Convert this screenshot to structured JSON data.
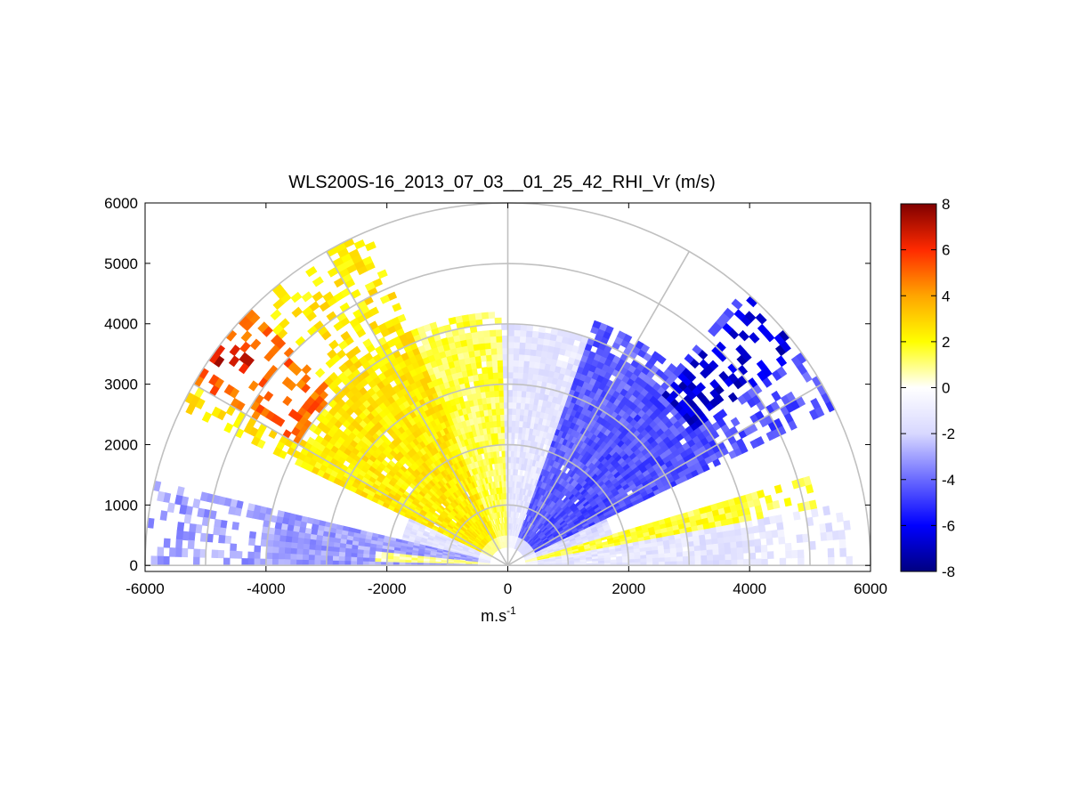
{
  "chart_data": {
    "type": "heatmap",
    "subtype": "polar-rhi-sector",
    "title": "WLS200S-16_2013_07_03__01_25_42_RHI_Vr (m/s)",
    "xlabel": "m.s",
    "xlabel_sup": "-1",
    "ylabel": "",
    "xlim": [
      -6000,
      6000
    ],
    "ylim": [
      -100,
      6000
    ],
    "x_ticks": [
      -6000,
      -4000,
      -2000,
      0,
      2000,
      4000,
      6000
    ],
    "y_ticks": [
      0,
      1000,
      2000,
      3000,
      4000,
      5000,
      6000
    ],
    "x_tick_labels": [
      "-6000",
      "-4000",
      "-2000",
      "0",
      "2000",
      "4000",
      "6000"
    ],
    "y_tick_labels": [
      "0",
      "1000",
      "2000",
      "3000",
      "4000",
      "5000",
      "6000"
    ],
    "range_rings": [
      1000,
      2000,
      3000,
      4000,
      5000,
      6000
    ],
    "radial_spokes_deg": [
      0,
      30,
      60,
      90,
      120,
      150,
      180
    ],
    "grid": true,
    "colorbar": {
      "min": -8,
      "max": 8,
      "ticks": [
        8,
        6,
        4,
        2,
        0,
        -2,
        -4,
        -6,
        -8
      ],
      "tick_labels": [
        "8",
        "6",
        "4",
        "2",
        "0",
        "-2",
        "-4",
        "-6",
        "-8"
      ],
      "placement": "right",
      "colors": [
        "#000080",
        "#0000ff",
        "#6a6aff",
        "#d8d8ff",
        "#ffffff",
        "#ffff00",
        "#ffa500",
        "#ff2a00",
        "#800000"
      ]
    },
    "velocity_regions": [
      {
        "elevation_deg": [
          0,
          10
        ],
        "range_m": [
          300,
          5800
        ],
        "vr": -1.3
      },
      {
        "elevation_deg": [
          10,
          16
        ],
        "range_m": [
          300,
          5200
        ],
        "vr": 1.6
      },
      {
        "elevation_deg": [
          16,
          26
        ],
        "range_m": [
          300,
          1800
        ],
        "vr": -1.6
      },
      {
        "elevation_deg": [
          26,
          50
        ],
        "range_m": [
          300,
          6000
        ],
        "vr": -4.5
      },
      {
        "elevation_deg": [
          36,
          48
        ],
        "range_m": [
          3800,
          6000
        ],
        "vr": -6.7
      },
      {
        "elevation_deg": [
          50,
          70
        ],
        "range_m": [
          300,
          4300
        ],
        "vr": -4.2
      },
      {
        "elevation_deg": [
          70,
          92
        ],
        "range_m": [
          300,
          4000
        ],
        "vr": -1.3
      },
      {
        "elevation_deg": [
          92,
          112
        ],
        "range_m": [
          300,
          4200
        ],
        "vr": 1.4
      },
      {
        "elevation_deg": [
          112,
          155
        ],
        "range_m": [
          300,
          6000
        ],
        "vr": 2.4
      },
      {
        "elevation_deg": [
          135,
          150
        ],
        "range_m": [
          4000,
          6000
        ],
        "vr": 5.0
      },
      {
        "elevation_deg": [
          141,
          147
        ],
        "range_m": [
          5200,
          6000
        ],
        "vr": 6.8
      },
      {
        "elevation_deg": [
          155,
          166
        ],
        "range_m": [
          300,
          1800
        ],
        "vr": -1.4
      },
      {
        "elevation_deg": [
          166,
          180
        ],
        "range_m": [
          300,
          6000
        ],
        "vr": -3.0
      },
      {
        "elevation_deg": [
          174,
          179
        ],
        "range_m": [
          300,
          2200
        ],
        "vr": 0.8
      }
    ]
  }
}
